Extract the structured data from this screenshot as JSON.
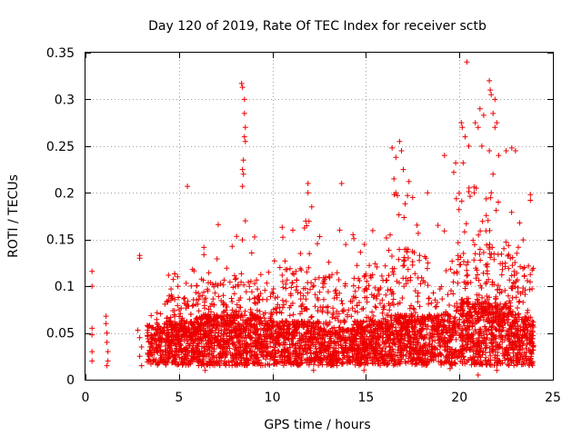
{
  "chart_data": {
    "type": "scatter",
    "title": "Day 120 of 2019, Rate Of TEC Index for receiver sctb",
    "xlabel": "GPS time / hours",
    "ylabel": "ROTI / TECUs",
    "xlim": [
      0,
      25
    ],
    "ylim": [
      0,
      0.35
    ],
    "xticks": [
      0,
      5,
      10,
      15,
      20,
      25
    ],
    "xtick_labels": [
      "0",
      "5",
      "10",
      "15",
      "20",
      "25"
    ],
    "yticks": [
      0,
      0.05,
      0.1,
      0.15,
      0.2,
      0.25,
      0.3,
      0.35
    ],
    "ytick_labels": [
      "0",
      "0.05",
      "0.1",
      "0.15",
      "0.2",
      "0.25",
      "0.3",
      "0.35"
    ],
    "grid": true,
    "marker": "+",
    "color": "#ee0000",
    "series": [
      {
        "name": "ROTI",
        "points": [
          [
            0.35,
            0.116
          ],
          [
            0.35,
            0.1
          ],
          [
            0.35,
            0.055
          ],
          [
            0.35,
            0.048
          ],
          [
            0.35,
            0.03
          ],
          [
            0.35,
            0.02
          ],
          [
            1.1,
            0.068
          ],
          [
            1.1,
            0.06
          ],
          [
            1.15,
            0.05
          ],
          [
            1.15,
            0.04
          ],
          [
            1.2,
            0.03
          ],
          [
            1.2,
            0.02
          ],
          [
            1.15,
            0.015
          ],
          [
            2.9,
            0.133
          ],
          [
            2.9,
            0.13
          ],
          [
            2.8,
            0.053
          ],
          [
            2.9,
            0.045
          ],
          [
            3.0,
            0.035
          ],
          [
            2.9,
            0.025
          ],
          [
            3.0,
            0.015
          ],
          [
            5.45,
            0.207
          ],
          [
            7.1,
            0.166
          ],
          [
            8.35,
            0.317
          ],
          [
            8.4,
            0.313
          ],
          [
            8.5,
            0.3
          ],
          [
            8.5,
            0.285
          ],
          [
            8.55,
            0.27
          ],
          [
            8.5,
            0.26
          ],
          [
            8.55,
            0.255
          ],
          [
            8.45,
            0.235
          ],
          [
            8.4,
            0.225
          ],
          [
            8.45,
            0.22
          ],
          [
            8.4,
            0.207
          ],
          [
            8.55,
            0.17
          ],
          [
            11.5,
            0.135
          ],
          [
            11.9,
            0.21
          ],
          [
            11.9,
            0.2
          ],
          [
            12.1,
            0.185
          ],
          [
            13.7,
            0.21
          ],
          [
            13.6,
            0.16
          ],
          [
            16.4,
            0.248
          ],
          [
            16.6,
            0.238
          ],
          [
            16.8,
            0.255
          ],
          [
            16.9,
            0.245
          ],
          [
            16.5,
            0.215
          ],
          [
            16.6,
            0.2
          ],
          [
            17.0,
            0.225
          ],
          [
            17.3,
            0.212
          ],
          [
            17.5,
            0.195
          ],
          [
            18.3,
            0.2
          ],
          [
            19.2,
            0.24
          ],
          [
            19.8,
            0.232
          ],
          [
            20.1,
            0.275
          ],
          [
            20.15,
            0.27
          ],
          [
            20.3,
            0.26
          ],
          [
            20.5,
            0.25
          ],
          [
            20.85,
            0.275
          ],
          [
            21.0,
            0.27
          ],
          [
            21.2,
            0.25
          ],
          [
            20.4,
            0.34
          ],
          [
            21.1,
            0.29
          ],
          [
            21.3,
            0.283
          ],
          [
            21.6,
            0.32
          ],
          [
            21.65,
            0.31
          ],
          [
            21.7,
            0.305
          ],
          [
            21.9,
            0.3
          ],
          [
            21.8,
            0.285
          ],
          [
            21.9,
            0.27
          ],
          [
            21.6,
            0.245
          ],
          [
            22.1,
            0.24
          ],
          [
            22.0,
            0.275
          ],
          [
            22.5,
            0.245
          ],
          [
            22.8,
            0.248
          ],
          [
            23.0,
            0.245
          ],
          [
            21.7,
            0.2
          ],
          [
            21.8,
            0.22
          ],
          [
            20.9,
            0.205
          ],
          [
            20.2,
            0.232
          ],
          [
            19.7,
            0.222
          ],
          [
            23.8,
            0.198
          ],
          [
            23.8,
            0.192
          ],
          [
            21.0,
            0.005
          ],
          [
            22.0,
            0.01
          ],
          [
            19.5,
            0.012
          ],
          [
            14.9,
            0.01
          ],
          [
            12.2,
            0.01
          ],
          [
            8.8,
            0.03
          ],
          [
            5.2,
            0.018
          ],
          [
            6.4,
            0.01
          ]
        ],
        "clusters": [
          {
            "x_range": [
              3.3,
              4.3
            ],
            "y_median": 0.04,
            "y_max": 0.085,
            "density": 0.6
          },
          {
            "x_range": [
              4.3,
              5.9
            ],
            "y_median": 0.045,
            "y_max": 0.12,
            "density": 1.0
          },
          {
            "x_range": [
              5.9,
              7.5
            ],
            "y_median": 0.05,
            "y_max": 0.148,
            "density": 1.0
          },
          {
            "x_range": [
              7.5,
              9.3
            ],
            "y_median": 0.05,
            "y_max": 0.16,
            "density": 1.0
          },
          {
            "x_range": [
              9.3,
              10.5
            ],
            "y_median": 0.045,
            "y_max": 0.13,
            "density": 0.8
          },
          {
            "x_range": [
              10.5,
              12.5
            ],
            "y_median": 0.045,
            "y_max": 0.17,
            "density": 0.9
          },
          {
            "x_range": [
              12.5,
              14.3
            ],
            "y_median": 0.04,
            "y_max": 0.16,
            "density": 0.8
          },
          {
            "x_range": [
              14.3,
              16.3
            ],
            "y_median": 0.045,
            "y_max": 0.16,
            "density": 1.0
          },
          {
            "x_range": [
              16.3,
              18.3
            ],
            "y_median": 0.05,
            "y_max": 0.2,
            "density": 1.0
          },
          {
            "x_range": [
              18.3,
              19.8
            ],
            "y_median": 0.05,
            "y_max": 0.18,
            "density": 0.8
          },
          {
            "x_range": [
              19.8,
              21.5
            ],
            "y_median": 0.06,
            "y_max": 0.21,
            "density": 1.0
          },
          {
            "x_range": [
              21.5,
              22.8
            ],
            "y_median": 0.06,
            "y_max": 0.2,
            "density": 1.0
          },
          {
            "x_range": [
              22.8,
              24.0
            ],
            "y_median": 0.05,
            "y_max": 0.17,
            "density": 0.9
          }
        ]
      }
    ]
  }
}
